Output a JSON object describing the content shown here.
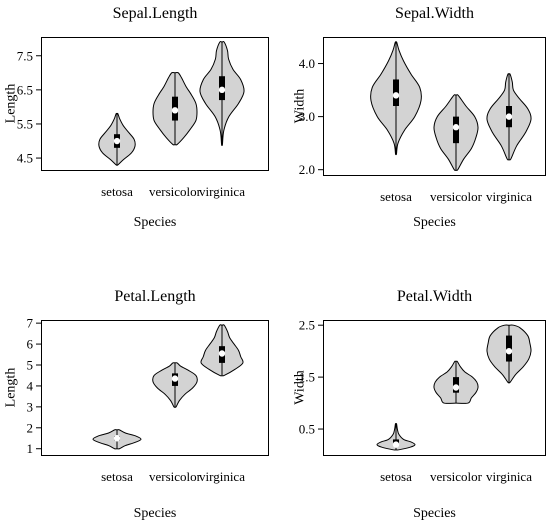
{
  "chart_data": [
    {
      "type": "violin",
      "title": "Sepal.Length",
      "xlabel": "Species",
      "ylabel": "Length",
      "categories": [
        "setosa",
        "versicolor",
        "virginica"
      ],
      "ylim": [
        4.15,
        8.05
      ],
      "yticks": [
        4.5,
        5.5,
        6.5,
        7.5
      ],
      "yticklabels": [
        "4.5",
        "5.5",
        "6.5",
        "7.5"
      ],
      "grid": false,
      "series": [
        {
          "category": "setosa",
          "min": 4.3,
          "q1": 4.8,
          "median": 5.0,
          "q3": 5.2,
          "max": 5.8,
          "profile": [
            [
              4.3,
              0.05
            ],
            [
              4.45,
              0.35
            ],
            [
              4.65,
              0.8
            ],
            [
              4.85,
              1.0
            ],
            [
              5.05,
              0.95
            ],
            [
              5.25,
              0.65
            ],
            [
              5.45,
              0.35
            ],
            [
              5.65,
              0.15
            ],
            [
              5.8,
              0.05
            ]
          ]
        },
        {
          "category": "versicolor",
          "min": 4.9,
          "q1": 5.6,
          "median": 5.9,
          "q3": 6.3,
          "max": 7.0,
          "profile": [
            [
              4.9,
              0.1
            ],
            [
              5.1,
              0.4
            ],
            [
              5.35,
              0.7
            ],
            [
              5.6,
              0.95
            ],
            [
              5.85,
              1.0
            ],
            [
              6.1,
              0.95
            ],
            [
              6.35,
              0.75
            ],
            [
              6.6,
              0.5
            ],
            [
              6.85,
              0.3
            ],
            [
              7.0,
              0.15
            ]
          ]
        },
        {
          "category": "virginica",
          "min": 4.9,
          "q1": 6.2,
          "median": 6.5,
          "q3": 6.9,
          "max": 7.9,
          "profile": [
            [
              4.9,
              0.02
            ],
            [
              5.3,
              0.08
            ],
            [
              5.7,
              0.3
            ],
            [
              6.1,
              0.75
            ],
            [
              6.45,
              1.0
            ],
            [
              6.8,
              0.85
            ],
            [
              7.1,
              0.5
            ],
            [
              7.4,
              0.3
            ],
            [
              7.65,
              0.25
            ],
            [
              7.9,
              0.1
            ]
          ]
        }
      ]
    },
    {
      "type": "violin",
      "title": "Sepal.Width",
      "xlabel": "Species",
      "ylabel": "Width",
      "categories": [
        "setosa",
        "versicolor",
        "virginica"
      ],
      "ylim": [
        1.9,
        4.5
      ],
      "yticks": [
        2.0,
        3.0,
        4.0
      ],
      "yticklabels": [
        "2.0",
        "3.0",
        "4.0"
      ],
      "grid": false,
      "series": [
        {
          "category": "setosa",
          "min": 2.3,
          "q1": 3.2,
          "median": 3.4,
          "q3": 3.7,
          "max": 4.4,
          "profile": [
            [
              2.3,
              0.02
            ],
            [
              2.5,
              0.08
            ],
            [
              2.75,
              0.35
            ],
            [
              3.0,
              0.75
            ],
            [
              3.3,
              1.0
            ],
            [
              3.55,
              0.95
            ],
            [
              3.8,
              0.6
            ],
            [
              4.05,
              0.3
            ],
            [
              4.25,
              0.12
            ],
            [
              4.4,
              0.03
            ]
          ]
        },
        {
          "category": "versicolor",
          "min": 2.0,
          "q1": 2.5,
          "median": 2.8,
          "q3": 3.0,
          "max": 3.4,
          "profile": [
            [
              2.0,
              0.08
            ],
            [
              2.2,
              0.35
            ],
            [
              2.4,
              0.7
            ],
            [
              2.6,
              0.9
            ],
            [
              2.8,
              1.0
            ],
            [
              3.0,
              0.85
            ],
            [
              3.2,
              0.45
            ],
            [
              3.4,
              0.1
            ]
          ]
        },
        {
          "category": "virginica",
          "min": 2.2,
          "q1": 2.8,
          "median": 3.0,
          "q3": 3.2,
          "max": 3.8,
          "profile": [
            [
              2.2,
              0.08
            ],
            [
              2.45,
              0.35
            ],
            [
              2.7,
              0.75
            ],
            [
              2.95,
              1.0
            ],
            [
              3.15,
              0.85
            ],
            [
              3.35,
              0.45
            ],
            [
              3.5,
              0.2
            ],
            [
              3.65,
              0.15
            ],
            [
              3.8,
              0.05
            ]
          ]
        }
      ]
    },
    {
      "type": "violin",
      "title": "Petal.Length",
      "xlabel": "Species",
      "ylabel": "Length",
      "categories": [
        "setosa",
        "versicolor",
        "virginica"
      ],
      "ylim": [
        0.7,
        7.15
      ],
      "yticks": [
        1,
        2,
        3,
        4,
        5,
        6,
        7
      ],
      "yticklabels": [
        "1",
        "2",
        "3",
        "4",
        "5",
        "6",
        "7"
      ],
      "grid": false,
      "series": [
        {
          "category": "setosa",
          "min": 1.0,
          "q1": 1.4,
          "median": 1.5,
          "q3": 1.6,
          "max": 1.9,
          "profile": [
            [
              1.0,
              0.1
            ],
            [
              1.15,
              0.35
            ],
            [
              1.3,
              0.75
            ],
            [
              1.45,
              1.0
            ],
            [
              1.6,
              0.8
            ],
            [
              1.75,
              0.35
            ],
            [
              1.9,
              0.1
            ]
          ]
        },
        {
          "category": "versicolor",
          "min": 3.0,
          "q1": 4.0,
          "median": 4.35,
          "q3": 4.6,
          "max": 5.1,
          "profile": [
            [
              3.0,
              0.05
            ],
            [
              3.3,
              0.2
            ],
            [
              3.6,
              0.45
            ],
            [
              3.9,
              0.8
            ],
            [
              4.2,
              1.0
            ],
            [
              4.5,
              0.95
            ],
            [
              4.75,
              0.6
            ],
            [
              4.95,
              0.25
            ],
            [
              5.1,
              0.1
            ]
          ]
        },
        {
          "category": "virginica",
          "min": 4.5,
          "q1": 5.1,
          "median": 5.55,
          "q3": 5.9,
          "max": 6.9,
          "profile": [
            [
              4.5,
              0.1
            ],
            [
              4.8,
              0.6
            ],
            [
              5.1,
              0.95
            ],
            [
              5.4,
              0.85
            ],
            [
              5.7,
              0.75
            ],
            [
              6.0,
              0.55
            ],
            [
              6.3,
              0.35
            ],
            [
              6.6,
              0.25
            ],
            [
              6.9,
              0.1
            ]
          ]
        }
      ]
    },
    {
      "type": "violin",
      "title": "Petal.Width",
      "xlabel": "Species",
      "ylabel": "Width",
      "categories": [
        "setosa",
        "versicolor",
        "virginica"
      ],
      "ylim": [
        0.0,
        2.6
      ],
      "yticks": [
        0.5,
        1.5,
        2.5
      ],
      "yticklabels": [
        "0.5",
        "1.5",
        "2.5"
      ],
      "grid": false,
      "series": [
        {
          "category": "setosa",
          "min": 0.1,
          "q1": 0.2,
          "median": 0.2,
          "q3": 0.3,
          "max": 0.6,
          "profile": [
            [
              0.1,
              0.15
            ],
            [
              0.15,
              0.75
            ],
            [
              0.2,
              1.0
            ],
            [
              0.25,
              0.8
            ],
            [
              0.3,
              0.4
            ],
            [
              0.4,
              0.15
            ],
            [
              0.5,
              0.07
            ],
            [
              0.6,
              0.03
            ]
          ]
        },
        {
          "category": "versicolor",
          "min": 1.0,
          "q1": 1.2,
          "median": 1.3,
          "q3": 1.5,
          "max": 1.8,
          "profile": [
            [
              1.0,
              0.55
            ],
            [
              1.1,
              0.7
            ],
            [
              1.2,
              0.9
            ],
            [
              1.3,
              1.0
            ],
            [
              1.4,
              0.95
            ],
            [
              1.5,
              0.75
            ],
            [
              1.6,
              0.4
            ],
            [
              1.7,
              0.2
            ],
            [
              1.8,
              0.06
            ]
          ]
        },
        {
          "category": "virginica",
          "min": 1.4,
          "q1": 1.8,
          "median": 2.0,
          "q3": 2.3,
          "max": 2.5,
          "profile": [
            [
              1.4,
              0.05
            ],
            [
              1.55,
              0.3
            ],
            [
              1.7,
              0.65
            ],
            [
              1.85,
              0.9
            ],
            [
              2.0,
              1.0
            ],
            [
              2.15,
              0.95
            ],
            [
              2.3,
              0.85
            ],
            [
              2.45,
              0.5
            ],
            [
              2.5,
              0.2
            ]
          ]
        }
      ]
    }
  ],
  "colors": {
    "violin_fill": "#d3d3d3",
    "violin_stroke": "#000000",
    "box": "#000000",
    "median": "#ffffff"
  }
}
